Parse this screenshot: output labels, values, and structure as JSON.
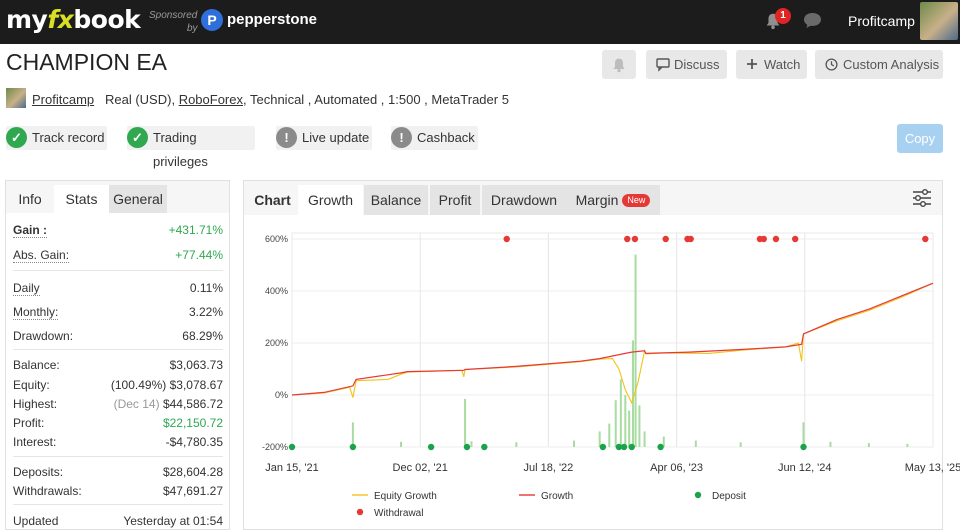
{
  "header": {
    "logo_pre": "my",
    "logo_fx": "fx",
    "logo_post": "book",
    "sponsored_line1": "Sponsored",
    "sponsored_line2": "by",
    "sponsor_logo_letter": "P",
    "sponsor_name": "pepperstone",
    "notification_count": "1",
    "username": "Profitcamp"
  },
  "title": {
    "name": "CHAMPION EA",
    "discuss": "Discuss",
    "watch": "Watch",
    "custom_analysis": "Custom Analysis"
  },
  "meta": {
    "owner": "Profitcamp",
    "account": "Real (USD),",
    "broker": "RoboForex",
    "details": ", Technical , Automated , 1:500 , MetaTrader 5"
  },
  "badges": {
    "track_record": "Track record",
    "trading_privileges": "Trading privileges",
    "live_update": "Live update",
    "cashback": "Cashback",
    "copy": "Copy"
  },
  "left_tabs": {
    "info": "Info",
    "stats": "Stats",
    "general": "General"
  },
  "stats": {
    "gain_label": "Gain :",
    "gain_value": "+431.71%",
    "abs_gain_label": "Abs. Gain:",
    "abs_gain_value": "+77.44%",
    "daily_label": "Daily",
    "daily_value": "0.11%",
    "monthly_label": "Monthly:",
    "monthly_value": "3.22%",
    "drawdown_label": "Drawdown:",
    "drawdown_value": "68.29%",
    "balance_label": "Balance:",
    "balance_value": "$3,063.73",
    "equity_label": "Equity:",
    "equity_pct": "(100.49%)",
    "equity_value": "$3,078.67",
    "highest_label": "Highest:",
    "highest_date": "(Dec 14)",
    "highest_value": "$44,586.72",
    "profit_label": "Profit:",
    "profit_value": "$22,150.72",
    "interest_label": "Interest:",
    "interest_value": "-$4,780.35",
    "deposits_label": "Deposits:",
    "deposits_value": "$28,604.28",
    "withdrawals_label": "Withdrawals:",
    "withdrawals_value": "$47,691.27",
    "updated_label": "Updated",
    "updated_value": "Yesterday at 01:54"
  },
  "chart_tabs": {
    "chart": "Chart",
    "growth": "Growth",
    "balance": "Balance",
    "profit": "Profit",
    "drawdown": "Drawdown",
    "margin": "Margin",
    "new": "New"
  },
  "colors": {
    "equity": "#f2c21b",
    "growth": "#e53935",
    "deposit": "#1aa34a",
    "withdrawal": "#e53935",
    "bars": "#a8dca0"
  },
  "chart_data": {
    "type": "line",
    "y_ticks": [
      "600%",
      "400%",
      "200%",
      "0%",
      "-200%"
    ],
    "y_tick_values": [
      600,
      400,
      200,
      0,
      -200
    ],
    "ylim": [
      -200,
      600
    ],
    "x_range": [
      0,
      100
    ],
    "x_ticks": [
      "Jan 15, '21",
      "Dec 02, '21",
      "Jul 18, '22",
      "Apr 06, '23",
      "Jun 12, '24",
      "May 13, '25"
    ],
    "x_tick_values": [
      0,
      20,
      40,
      60,
      80,
      100
    ],
    "grid_x": [
      20,
      40,
      60,
      80
    ],
    "series": [
      {
        "name": "Growth",
        "x": [
          0,
          5,
          9.5,
          10,
          17,
          18,
          26.8,
          27,
          35,
          45,
          48,
          50,
          52,
          53,
          55,
          55.2,
          62,
          70,
          77,
          79.5,
          79.8,
          85,
          90,
          95,
          100
        ],
        "y": [
          0,
          10,
          35,
          60,
          85,
          90,
          95,
          98,
          110,
          130,
          140,
          150,
          160,
          165,
          170,
          160,
          165,
          175,
          185,
          195,
          235,
          290,
          330,
          380,
          430
        ]
      },
      {
        "name": "Equity Growth",
        "x": [
          0,
          5,
          9,
          9.5,
          10,
          15,
          17,
          18,
          26.5,
          26.8,
          27,
          35,
          45,
          48,
          50,
          51,
          52,
          53,
          54,
          55,
          55.2,
          58,
          65,
          70,
          77,
          79,
          79.5,
          79.8,
          85,
          90,
          95,
          100
        ],
        "y": [
          0,
          8,
          30,
          -10,
          55,
          60,
          80,
          88,
          95,
          70,
          98,
          108,
          128,
          138,
          140,
          100,
          20,
          -30,
          50,
          170,
          158,
          162,
          160,
          172,
          185,
          200,
          130,
          235,
          285,
          325,
          375,
          430
        ]
      }
    ],
    "deposits_x": [
      0,
      9.5,
      21.7,
      27.3,
      30,
      48.5,
      51,
      51.8,
      53,
      57.5,
      79.8
    ],
    "withdrawals_x": [
      33.5,
      52.3,
      53.5,
      58.3,
      61.7,
      62.2,
      73,
      73.6,
      75.5,
      78.5,
      98.8
    ],
    "bars": [
      {
        "x": 9.5,
        "v": 95
      },
      {
        "x": 17,
        "v": 20
      },
      {
        "x": 27,
        "v": 185
      },
      {
        "x": 28,
        "v": 22
      },
      {
        "x": 35,
        "v": 18
      },
      {
        "x": 44,
        "v": 25
      },
      {
        "x": 48,
        "v": 60
      },
      {
        "x": 49.5,
        "v": 90
      },
      {
        "x": 50.5,
        "v": 180
      },
      {
        "x": 51.3,
        "v": 260
      },
      {
        "x": 52,
        "v": 200
      },
      {
        "x": 52.6,
        "v": 140
      },
      {
        "x": 53.2,
        "v": 410
      },
      {
        "x": 53.6,
        "v": 740
      },
      {
        "x": 54.2,
        "v": 160
      },
      {
        "x": 55,
        "v": 60
      },
      {
        "x": 58,
        "v": 40
      },
      {
        "x": 63,
        "v": 25
      },
      {
        "x": 70,
        "v": 18
      },
      {
        "x": 79.8,
        "v": 95
      },
      {
        "x": 84,
        "v": 20
      },
      {
        "x": 90,
        "v": 15
      },
      {
        "x": 96,
        "v": 12
      }
    ],
    "legend": [
      "Equity Growth",
      "Growth",
      "Deposit",
      "Withdrawal"
    ]
  }
}
